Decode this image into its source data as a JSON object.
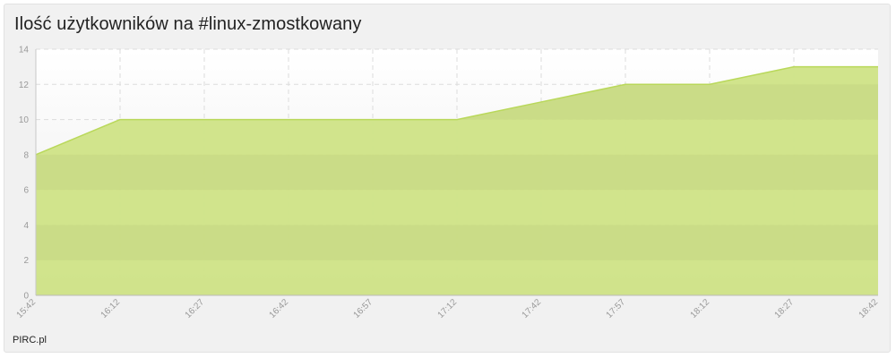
{
  "header": {
    "title": "Ilość użytkowników na #linux-zmostkowany"
  },
  "footer": {
    "brand": "PIRC.pl"
  },
  "chart_data": {
    "type": "area",
    "title": "Ilość użytkowników na #linux-zmostkowany",
    "xlabel": "",
    "ylabel": "",
    "x": [
      "15:42",
      "16:12",
      "16:27",
      "16:42",
      "16:57",
      "17:12",
      "17:42",
      "17:57",
      "18:12",
      "18:27",
      "18:42"
    ],
    "values": [
      8,
      10,
      10,
      10,
      10,
      10,
      11,
      12,
      12,
      13,
      13
    ],
    "ylim": [
      0,
      14
    ],
    "yticks": [
      0,
      2,
      4,
      6,
      8,
      10,
      12,
      14
    ],
    "grid": true,
    "colors": {
      "fill": "#cfe386",
      "line": "#b9d85a"
    }
  }
}
